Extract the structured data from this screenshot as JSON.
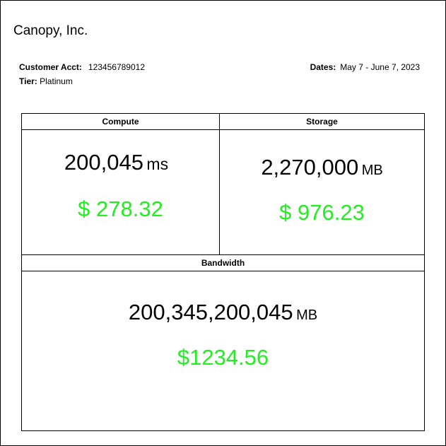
{
  "company": {
    "name": "Canopy, Inc."
  },
  "account": {
    "customer_acct_label": "Customer Acct:",
    "customer_acct_value": "123456789012",
    "tier_label": "Tier:",
    "tier_value": "Platinum",
    "dates_label": "Dates:",
    "dates_value": "May 7 - June 7, 2023"
  },
  "sections": {
    "compute": {
      "title": "Compute",
      "amount": "200,045",
      "unit": "ms",
      "cost": "$ 278.32"
    },
    "storage": {
      "title": "Storage",
      "amount": "2,270,000",
      "unit": "MB",
      "cost": "$ 976.23"
    },
    "bandwidth": {
      "title": "Bandwidth",
      "amount": "200,345,200,045",
      "unit": "MB",
      "cost": "$1234.56"
    }
  },
  "colors": {
    "cost_text": "#22ee22",
    "border": "#000000"
  }
}
